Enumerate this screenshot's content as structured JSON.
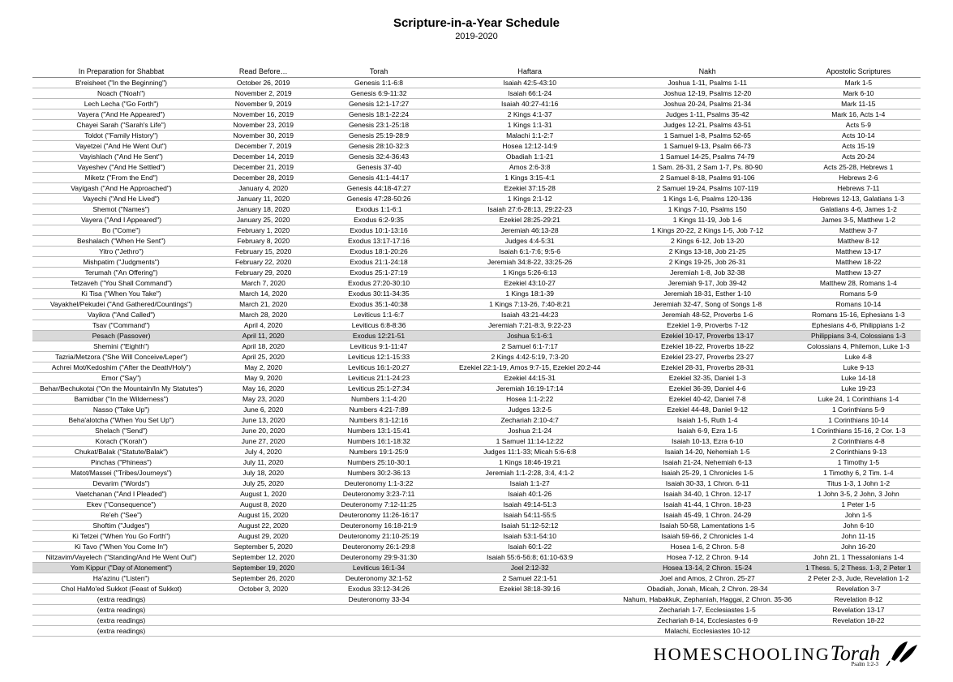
{
  "title": "Scripture-in-a-Year Schedule",
  "subtitle": "2019-2020",
  "columns": [
    "In Preparation for Shabbat",
    "Read Before…",
    "Torah",
    "Haftara",
    "Nakh",
    "Apostolic Scriptures"
  ],
  "rows": [
    {
      "c": [
        "B'reisheet (\"In the Beginning\")",
        "October 26, 2019",
        "Genesis 1:1-6:8",
        "Isaiah 42:5-43:10",
        "Joshua 1-11, Psalms 1-11",
        "Mark 1-5"
      ]
    },
    {
      "c": [
        "Noach (\"Noah\")",
        "November 2, 2019",
        "Genesis 6:9-11:32",
        "Isaiah 66:1-24",
        "Joshua 12-19, Psalms 12-20",
        "Mark 6-10"
      ]
    },
    {
      "c": [
        "Lech Lecha (\"Go Forth\")",
        "November 9, 2019",
        "Genesis 12:1-17:27",
        "Isaiah 40:27-41:16",
        "Joshua 20-24, Psalms 21-34",
        "Mark 11-15"
      ]
    },
    {
      "c": [
        "Vayera (\"And He Appeared\")",
        "November 16, 2019",
        "Genesis 18:1-22:24",
        "2 Kings 4:1-37",
        "Judges 1-11, Psalms 35-42",
        "Mark 16, Acts 1-4"
      ]
    },
    {
      "c": [
        "Chayei Sarah (\"Sarah's Life\")",
        "November 23, 2019",
        "Genesis 23:1-25:18",
        "1 Kings 1:1-31",
        "Judges 12-21, Psalms 43-51",
        "Acts 5-9"
      ]
    },
    {
      "c": [
        "Toldot (\"Family History\")",
        "November 30, 2019",
        "Genesis 25:19-28:9",
        "Malachi 1:1-2:7",
        "1 Samuel 1-8, Psalms 52-65",
        "Acts 10-14"
      ]
    },
    {
      "c": [
        "Vayetzei (\"And He Went Out\")",
        "December 7, 2019",
        "Genesis 28:10-32:3",
        "Hosea 12:12-14:9",
        "1 Samuel 9-13, Psalm 66-73",
        "Acts 15-19"
      ]
    },
    {
      "c": [
        "Vayishlach (\"And He Sent\")",
        "December 14, 2019",
        "Genesis 32:4-36:43",
        "Obadiah 1:1-21",
        "1 Samuel 14-25, Psalms 74-79",
        "Acts 20-24"
      ]
    },
    {
      "c": [
        "Vayeshev (\"And He Settled\")",
        "December 21, 2019",
        "Genesis 37-40",
        "Amos 2:6-3:8",
        "1 Sam. 26-31, 2 Sam 1-7, Ps. 80-90",
        "Acts 25-28, Hebrews 1"
      ]
    },
    {
      "c": [
        "Miketz (\"From the End\")",
        "December 28, 2019",
        "Genesis 41:1-44:17",
        "1 Kings 3:15-4:1",
        "2 Samuel 8-18, Psalms 91-106",
        "Hebrews 2-6"
      ]
    },
    {
      "c": [
        "Vayigash (\"And He Approached\")",
        "January 4, 2020",
        "Genesis 44:18-47:27",
        "Ezekiel 37:15-28",
        "2 Samuel 19-24, Psalms 107-119",
        "Hebrews 7-11"
      ]
    },
    {
      "c": [
        "Vayechi (\"And He Lived\")",
        "January 11, 2020",
        "Genesis 47:28-50:26",
        "1 Kings 2:1-12",
        "1 Kings 1-6, Psalms 120-136",
        "Hebrews 12-13, Galatians 1-3"
      ]
    },
    {
      "c": [
        "Shemot (\"Names\")",
        "January 18, 2020",
        "Exodus 1:1-6:1",
        "Isaiah 27:6-28:13, 29:22-23",
        "1 Kings 7-10, Psalms 150",
        "Galatians 4-6, James 1-2"
      ]
    },
    {
      "c": [
        "Vayera (\"And I Appeared\")",
        "January 25, 2020",
        "Exodus 6:2-9:35",
        "Ezekiel 28:25-29:21",
        "1 Kings 11-19, Job 1-6",
        "James 3-5, Matthew 1-2"
      ]
    },
    {
      "c": [
        "Bo (\"Come\")",
        "February 1, 2020",
        "Exodus 10:1-13:16",
        "Jeremiah 46:13-28",
        "1 Kings 20-22, 2 Kings 1-5, Job 7-12",
        "Matthew 3-7"
      ]
    },
    {
      "c": [
        "Beshalach (\"When He Sent\")",
        "February 8, 2020",
        "Exodus 13:17-17:16",
        "Judges 4:4-5:31",
        "2 Kings 6-12, Job 13-20",
        "Matthew 8-12"
      ]
    },
    {
      "c": [
        "Yitro (\"Jethro\")",
        "February 15, 2020",
        "Exodus 18:1-20:26",
        "Isaiah 6:1-7:6; 9:5-6",
        "2 Kings 13-18, Job 21-25",
        "Matthew 13-17"
      ]
    },
    {
      "c": [
        "Mishpatim (\"Judgments\")",
        "February 22, 2020",
        "Exodus 21:1-24:18",
        "Jeremiah 34:8-22, 33:25-26",
        "2 Kings 19-25, Job 26-31",
        "Matthew 18-22"
      ]
    },
    {
      "c": [
        "Terumah (\"An Offering\")",
        "February 29, 2020",
        "Exodus 25:1-27:19",
        "1 Kings 5:26-6:13",
        "Jeremiah 1-8, Job 32-38",
        "Matthew 13-27"
      ]
    },
    {
      "c": [
        "Tetzaveh (\"You Shall Command\")",
        "March 7, 2020",
        "Exodus 27:20-30:10",
        "Ezekiel 43:10-27",
        "Jeremiah 9-17, Job 39-42",
        "Matthew 28, Romans 1-4"
      ]
    },
    {
      "c": [
        "Ki Tisa (\"When You Take\")",
        "March 14, 2020",
        "Exodus 30:11-34:35",
        "1 Kings 18:1-39",
        "Jeremiah 18-31, Esther 1-10",
        "Romans 5-9"
      ]
    },
    {
      "c": [
        "Vayakhel/Pekudei (\"And Gathered/Countings\")",
        "March 21, 2020",
        "Exodus 35:1-40:38",
        "1 Kings 7:13-26, 7:40-8:21",
        "Jeremiah 32-47, Song of Songs 1-8",
        "Romans 10-14"
      ]
    },
    {
      "c": [
        "Vayikra (\"And Called\")",
        "March 28, 2020",
        "Leviticus 1:1-6:7",
        "Isaiah 43:21-44:23",
        "Jeremiah 48-52, Proverbs 1-6",
        "Romans 15-16, Ephesians 1-3"
      ]
    },
    {
      "c": [
        "Tsav (\"Command\")",
        "April 4, 2020",
        "Leviticus 6:8-8:36",
        "Jeremiah 7:21-8:3, 9:22-23",
        "Ezekiel 1-9, Proverbs 7-12",
        "Ephesians 4-6, Philippians 1-2"
      ]
    },
    {
      "c": [
        "Pesach (Passover)",
        "April 11, 2020",
        "Exodus 12:21-51",
        "Joshua 5:1-6:1",
        "Ezekiel 10-17, Proverbs 13-17",
        "Philippians 3-4, Colossians 1-3"
      ],
      "hl": true
    },
    {
      "c": [
        "Shemini (\"Eighth\")",
        "April 18, 2020",
        "Leviticus 9:1-11:47",
        "2 Samuel 6:1-7:17",
        "Ezekiel 18-22, Proverbs 18-22",
        "Colossians 4, Philemon, Luke 1-3"
      ]
    },
    {
      "c": [
        "Tazria/Metzora (\"She Will Conceive/Leper\")",
        "April 25, 2020",
        "Leviticus 12:1-15:33",
        "2 Kings 4:42-5:19, 7:3-20",
        "Ezekiel 23-27, Proverbs 23-27",
        "Luke 4-8"
      ]
    },
    {
      "c": [
        "Achrei Mot/Kedoshim (\"After the Death/Holy\")",
        "May 2, 2020",
        "Leviticus 16:1-20:27",
        "Ezekiel 22:1-19, Amos 9:7-15, Ezekiel 20:2-44",
        "Ezekiel 28-31, Proverbs 28-31",
        "Luke 9-13"
      ]
    },
    {
      "c": [
        "Emor (\"Say\")",
        "May 9, 2020",
        "Leviticus 21:1-24:23",
        "Ezekiel 44:15-31",
        "Ezekiel 32-35, Daniel 1-3",
        "Luke 14-18"
      ]
    },
    {
      "c": [
        "Behar/Bechukotai (\"On the Mountain/In My Statutes\")",
        "May 16, 2020",
        "Leviticus 25:1-27:34",
        "Jeremiah 16:19-17:14",
        "Ezekiel 36-39, Daniel 4-6",
        "Luke 19-23"
      ]
    },
    {
      "c": [
        "Bamidbar (\"In the Wilderness\")",
        "May 23, 2020",
        "Numbers 1:1-4:20",
        "Hosea 1:1-2:22",
        "Ezekiel 40-42, Daniel 7-8",
        "Luke 24, 1 Corinthians 1-4"
      ]
    },
    {
      "c": [
        "Nasso (\"Take Up\")",
        "June 6, 2020",
        "Numbers 4:21-7:89",
        "Judges 13:2-5",
        "Ezekiel 44-48, Daniel 9-12",
        "1 Corinthians 5-9"
      ]
    },
    {
      "c": [
        "Beha'alotcha (\"When You Set Up\")",
        "June 13, 2020",
        "Numbers 8:1-12:16",
        "Zechariah 2:10-4:7",
        "Isaiah 1-5, Ruth 1-4",
        "1 Corinthians 10-14"
      ]
    },
    {
      "c": [
        "Shelach (\"Send\")",
        "June 20, 2020",
        "Numbers 13:1-15:41",
        "Joshua 2:1-24",
        "Isaiah 6-9, Ezra 1-5",
        "1 Corinthians 15-16, 2 Cor. 1-3"
      ]
    },
    {
      "c": [
        "Korach (\"Korah\")",
        "June 27, 2020",
        "Numbers 16:1-18:32",
        "1 Samuel 11:14-12:22",
        "Isaiah 10-13, Ezra 6-10",
        "2 Corinthians 4-8"
      ]
    },
    {
      "c": [
        "Chukat/Balak (\"Statute/Balak\")",
        "July 4, 2020",
        "Numbers 19:1-25:9",
        "Judges 11:1-33; Micah 5:6-6:8",
        "Isaiah 14-20, Nehemiah 1-5",
        "2 Corinthians 9-13"
      ]
    },
    {
      "c": [
        "Pinchas (\"Phineas\")",
        "July 11, 2020",
        "Numbers 25:10-30:1",
        "1 Kings 18:46-19:21",
        "Isaiah 21-24, Nehemiah 6-13",
        "1 Timothy 1-5"
      ]
    },
    {
      "c": [
        "Matot/Massei (\"Tribes/Journeys\")",
        "July 18, 2020",
        "Numbers 30:2-36:13",
        "Jeremiah 1:1-2:28, 3:4, 4:1-2",
        "Isaiah 25-29, 1 Chronicles 1-5",
        "1 Timothy 6, 2 Tim. 1-4"
      ]
    },
    {
      "c": [
        "Devarim (\"Words\")",
        "July 25, 2020",
        "Deuteronomy 1:1-3:22",
        "Isaiah 1:1-27",
        "Isaiah 30-33, 1 Chron. 6-11",
        "Titus 1-3, 1 John 1-2"
      ]
    },
    {
      "c": [
        "Vaetchanan (\"And I Pleaded\")",
        "August 1, 2020",
        "Deuteronomy 3:23-7:11",
        "Isaiah 40:1-26",
        "Isaiah 34-40, 1 Chron. 12-17",
        "1 John 3-5, 2 John, 3 John"
      ]
    },
    {
      "c": [
        "Ekev (\"Consequence\")",
        "August 8, 2020",
        "Deuteronomy 7:12-11:25",
        "Isaiah 49:14-51:3",
        "Isaiah 41-44, 1 Chron. 18-23",
        "1 Peter 1-5"
      ]
    },
    {
      "c": [
        "Re'eh (\"See\")",
        "August 15, 2020",
        "Deuteronomy 11:26-16:17",
        "Isaiah 54:11-55:5",
        "Isaiah 45-49, 1 Chron. 24-29",
        "John 1-5"
      ]
    },
    {
      "c": [
        "Shoftim (\"Judges\")",
        "August 22, 2020",
        "Deuteronomy 16:18-21:9",
        "Isaiah 51:12-52:12",
        "Isaiah 50-58, Lamentations 1-5",
        "John 6-10"
      ]
    },
    {
      "c": [
        "Ki Tetzei (\"When You Go Forth\")",
        "August 29, 2020",
        "Deuteronomy 21:10-25:19",
        "Isaiah 53:1-54:10",
        "Isaiah 59-66, 2 Chronicles 1-4",
        "John 11-15"
      ]
    },
    {
      "c": [
        "Ki Tavo (\"When You Come In\")",
        "September 5, 2020",
        "Deuteronomy 26:1-29:8",
        "Isaiah 60:1-22",
        "Hosea 1-6, 2 Chron. 5-8",
        "John 16-20"
      ]
    },
    {
      "c": [
        "Nitzavim/Vayelech (\"Standing/And He Went Out\")",
        "September 12, 2020",
        "Deuteronomy 29:9-31:30",
        "Isaiah 55:6-56:8; 61:10-63:9",
        "Hosea 7-12, 2 Chron. 9-14",
        "John 21, 1 Thessalonians 1-4"
      ]
    },
    {
      "c": [
        "Yom Kippur (\"Day of Atonement\")",
        "September 19, 2020",
        "Leviticus 16:1-34",
        "Joel 2:12-32",
        "Hosea 13-14, 2 Chron. 15-24",
        "1 Thess. 5, 2 Thess. 1-3, 2 Peter 1"
      ],
      "hl": true
    },
    {
      "c": [
        "Ha'azinu (\"Listen\")",
        "September 26, 2020",
        "Deuteronomy 32:1-52",
        "2 Samuel 22:1-51",
        "Joel and Amos, 2 Chron. 25-27",
        "2 Peter 2-3, Jude, Revelation 1-2"
      ]
    },
    {
      "c": [
        "Chol HaMo'ed Sukkot (Feast of Sukkot)",
        "October 3, 2020",
        "Exodus 33:12-34:26",
        "Ezekiel 38:18-39:16",
        "Obadiah, Jonah, Micah, 2 Chron. 28-34",
        "Revelation 3-7"
      ]
    },
    {
      "c": [
        "(extra readings)",
        "",
        "Deuteronomy 33-34",
        "",
        "Nahum, Habakkuk, Zephaniah, Haggai, 2 Chron. 35-36",
        "Revelation 8-12"
      ]
    },
    {
      "c": [
        "(extra readings)",
        "",
        "",
        "",
        "Zechariah 1-7, Ecclesiastes 1-5",
        "Revelation 13-17"
      ]
    },
    {
      "c": [
        "(extra readings)",
        "",
        "",
        "",
        "Zechariah 8-14, Ecclesiastes 6-9",
        "Revelation 18-22"
      ]
    },
    {
      "c": [
        "(extra readings)",
        "",
        "",
        "",
        "Malachi, Ecclesiastes 10-12",
        ""
      ]
    }
  ],
  "logo": {
    "text": "HOMESCHOOLING",
    "accent": "Torah",
    "sub": "Psalm 1:2-3"
  }
}
